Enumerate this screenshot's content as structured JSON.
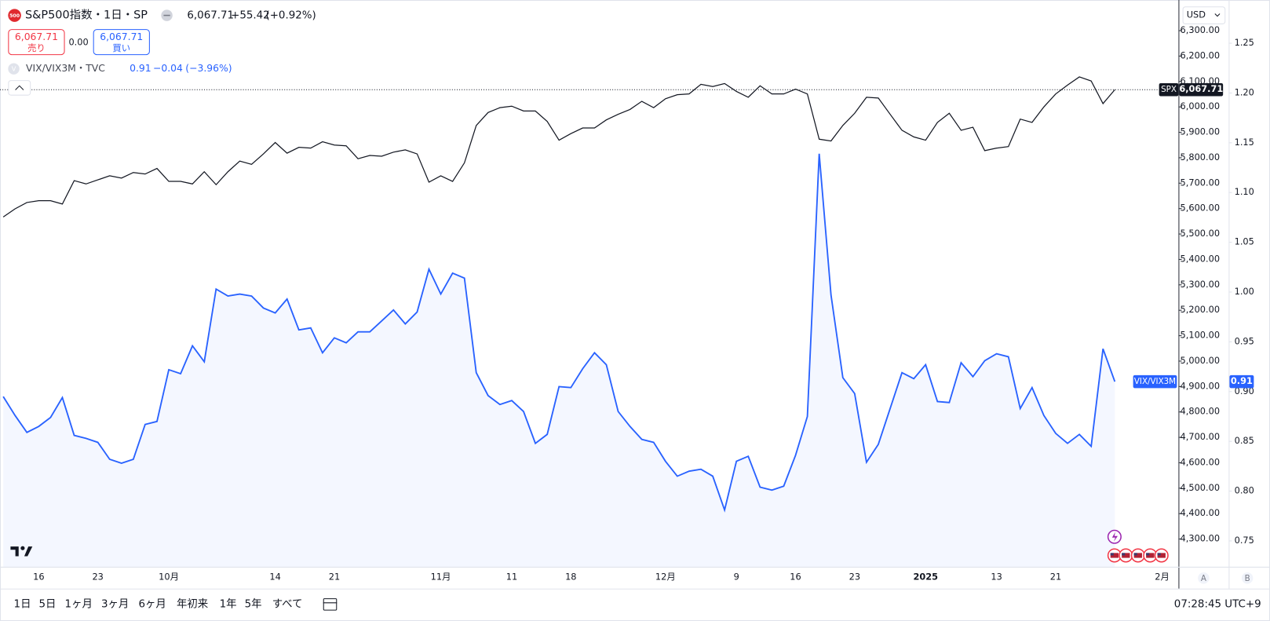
{
  "ui": {
    "header": {
      "icon": "500",
      "symbol": "S&P500指数・1日・SP",
      "price": "6,067.71",
      "change": "+55.42",
      "change_pct": "(+0.92%)"
    },
    "trade": {
      "sell_price": "6,067.71",
      "sell": "売り",
      "spread": "0.00",
      "buy_price": "6,067.71",
      "buy": "買い"
    },
    "legend": {
      "icon": "V",
      "name": "VIX/VIX3M・TVC",
      "price": "0.91",
      "change": "−0.04",
      "change_pct": "(−3.96%)"
    },
    "currency": "USD",
    "scale_buttons": [
      "A",
      "B"
    ],
    "ranges": [
      "1日",
      "5日",
      "1ヶ月",
      "3ヶ月",
      "6ヶ月",
      "年初来",
      "1年",
      "5年",
      "すべて"
    ],
    "clock": "07:28:45 UTC+9"
  },
  "chart_data": {
    "type": "line",
    "categories": [
      null,
      null,
      null,
      "16",
      null,
      null,
      null,
      null,
      "23",
      null,
      null,
      null,
      null,
      null,
      "10月",
      null,
      null,
      null,
      null,
      null,
      null,
      null,
      null,
      "14",
      null,
      null,
      null,
      null,
      "21",
      null,
      null,
      null,
      null,
      null,
      null,
      null,
      null,
      "11月",
      null,
      null,
      null,
      null,
      null,
      "11",
      null,
      null,
      null,
      null,
      "18",
      null,
      null,
      null,
      null,
      null,
      null,
      null,
      "12月",
      null,
      null,
      null,
      null,
      null,
      "9",
      null,
      null,
      null,
      null,
      "16",
      null,
      null,
      null,
      null,
      "23",
      null,
      null,
      null,
      null,
      null,
      "2025",
      null,
      null,
      null,
      null,
      null,
      "13",
      null,
      null,
      null,
      null,
      "21",
      null,
      null,
      null,
      null,
      null,
      null,
      null,
      null,
      "2月"
    ],
    "series": [
      {
        "name": "SPX",
        "color": "#131722",
        "last_label": "6,067.71",
        "values": [
          5567,
          5599,
          5624,
          5631,
          5631,
          5618,
          5710,
          5697,
          5713,
          5729,
          5720,
          5742,
          5736,
          5758,
          5707,
          5707,
          5697,
          5745,
          5694,
          5745,
          5787,
          5774,
          5815,
          5860,
          5818,
          5841,
          5838,
          5863,
          5850,
          5847,
          5796,
          5809,
          5806,
          5822,
          5831,
          5815,
          5704,
          5729,
          5707,
          5780,
          5927,
          5978,
          5997,
          6003,
          5984,
          5984,
          5943,
          5869,
          5895,
          5917,
          5917,
          5949,
          5971,
          5990,
          6022,
          5997,
          6032,
          6048,
          6051,
          6089,
          6080,
          6092,
          6061,
          6038,
          6083,
          6051,
          6051,
          6070,
          6051,
          5873,
          5866,
          5927,
          5975,
          6038,
          6035,
          5971,
          5908,
          5882,
          5869,
          5939,
          5975,
          5908,
          5920,
          5828,
          5838,
          5844,
          5952,
          5939,
          6000,
          6051,
          6086,
          6118,
          6102,
          6013,
          6067.71,
          null,
          null,
          null,
          null
        ]
      },
      {
        "name": "VIX/VIX3M",
        "color": "#2962ff",
        "axis": "y2",
        "last_label": "0.91",
        "values": [
          0.895,
          0.876,
          0.859,
          0.865,
          0.874,
          0.894,
          0.856,
          0.853,
          0.849,
          0.832,
          0.828,
          0.832,
          0.867,
          0.87,
          0.922,
          0.918,
          0.946,
          0.93,
          1.003,
          0.996,
          0.998,
          0.996,
          0.984,
          0.979,
          0.993,
          0.962,
          0.964,
          0.939,
          0.954,
          0.949,
          0.96,
          0.96,
          0.971,
          0.982,
          0.968,
          0.98,
          1.023,
          0.998,
          1.019,
          1.014,
          0.919,
          0.896,
          0.887,
          0.891,
          0.88,
          0.848,
          0.857,
          0.905,
          0.904,
          0.923,
          0.939,
          0.927,
          0.88,
          0.865,
          0.852,
          0.849,
          0.83,
          0.815,
          0.82,
          0.822,
          0.815,
          0.781,
          0.83,
          0.835,
          0.804,
          0.801,
          0.805,
          0.836,
          0.875,
          1.139,
          0.997,
          0.914,
          0.898,
          0.829,
          0.847,
          0.883,
          0.919,
          0.913,
          0.927,
          0.89,
          0.889,
          0.929,
          0.915,
          0.931,
          0.938,
          0.935,
          0.883,
          0.904,
          0.876,
          0.858,
          0.848,
          0.857,
          0.845,
          0.943,
          0.91,
          null,
          null,
          null,
          null
        ]
      }
    ],
    "ylim": [
      4191,
      6411
    ],
    "yticks": [
      {
        "value": 4300,
        "label": "4,300.00"
      },
      {
        "value": 4400,
        "label": "4,400.00"
      },
      {
        "value": 4500,
        "label": "4,500.00"
      },
      {
        "value": 4600,
        "label": "4,600.00"
      },
      {
        "value": 4700,
        "label": "4,700.00"
      },
      {
        "value": 4800,
        "label": "4,800.00"
      },
      {
        "value": 4900,
        "label": "4,900.00"
      },
      {
        "value": 5000,
        "label": "5,000.00"
      },
      {
        "value": 5100,
        "label": "5,100.00"
      },
      {
        "value": 5200,
        "label": "5,200.00"
      },
      {
        "value": 5300,
        "label": "5,300.00"
      },
      {
        "value": 5400,
        "label": "5,400.00"
      },
      {
        "value": 5500,
        "label": "5,500.00"
      },
      {
        "value": 5600,
        "label": "5,600.00"
      },
      {
        "value": 5700,
        "label": "5,700.00"
      },
      {
        "value": 5800,
        "label": "5,800.00"
      },
      {
        "value": 5900,
        "label": "5,900.00"
      },
      {
        "value": 6000,
        "label": "6,000.00"
      },
      {
        "value": 6100,
        "label": "6,100.00"
      },
      {
        "value": 6200,
        "label": "6,200.00"
      },
      {
        "value": 6300,
        "label": "6,300.00"
      }
    ],
    "y2lim": [
      0.724,
      1.291
    ],
    "y2ticks": [
      0.75,
      {
        "value": 0.8,
        "label": "0.80"
      },
      0.85,
      {
        "value": 0.9,
        "label": "0.90"
      },
      0.95,
      {
        "value": 1,
        "label": "1.00"
      },
      1.05,
      {
        "value": 1.1,
        "label": "1.10"
      },
      1.15,
      {
        "value": 1.2,
        "label": "1.20"
      },
      1.25
    ],
    "grid": false
  }
}
